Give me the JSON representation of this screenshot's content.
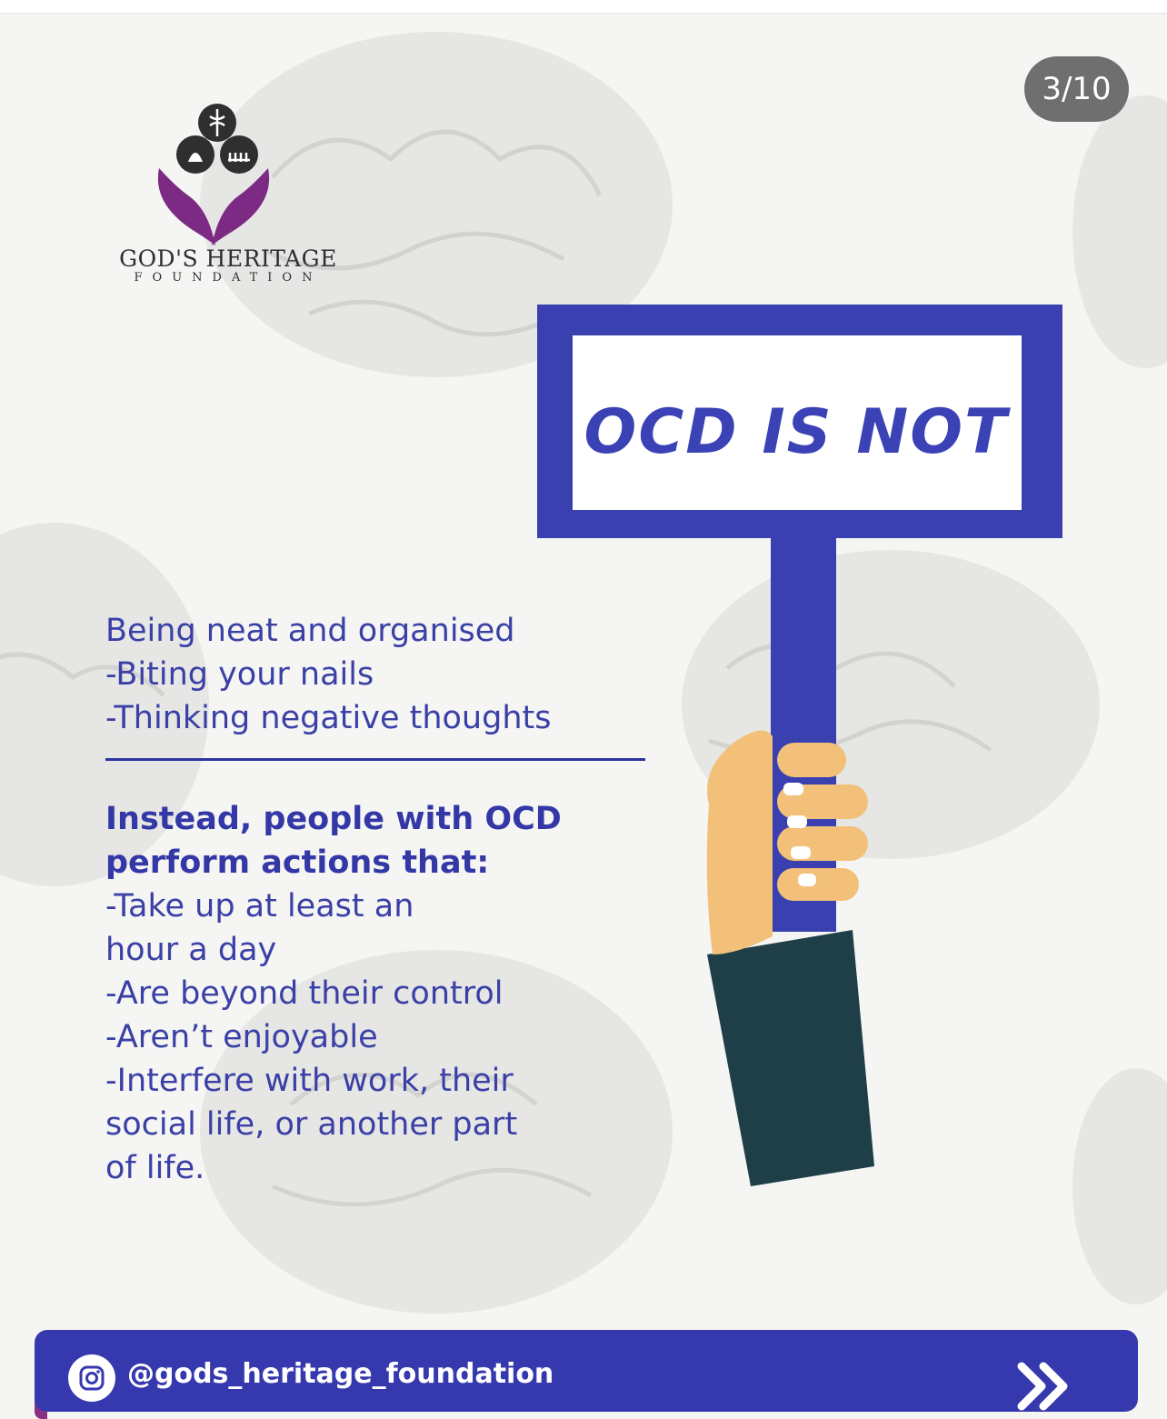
{
  "pager": {
    "current": "3/10"
  },
  "logo": {
    "name": "GOD'S HERITAGE",
    "sub": "FOUNDATION",
    "mark_icon": "hands-holding-circles-icon",
    "colors": {
      "hands": "#7d2a84",
      "circles": "#2f2f2f"
    }
  },
  "sign": {
    "text": "OCD IS NOT"
  },
  "not_list": [
    "Being neat and organised",
    "-Biting your nails",
    "-Thinking negative thoughts"
  ],
  "instead": {
    "heading_1": "Instead, people with OCD",
    "heading_2": "perform actions that:",
    "items": [
      "-Take up at least an",
      "hour a day",
      "-Are beyond their control",
      "-Aren’t enjoyable",
      "-Interfere with work, their",
      "social life, or another part",
      "of life."
    ]
  },
  "footer": {
    "handle": "@gods_heritage_foundation",
    "platform_icon": "instagram-icon",
    "next_icon": "double-chevron-right-icon"
  },
  "colors": {
    "primary_blue": "#3a40b0",
    "text_blue": "#3a40a6",
    "sleeve": "#1f3f48",
    "skin": "#f2c078",
    "counter_bg": "#6f6f6f"
  }
}
